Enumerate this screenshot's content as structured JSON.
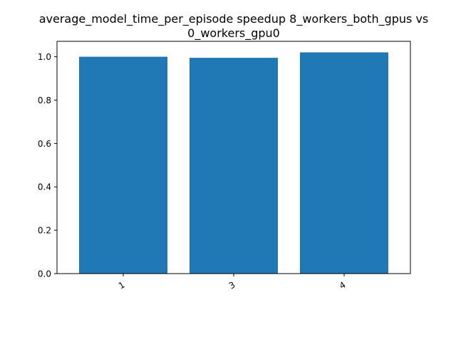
{
  "chart_data": {
    "type": "bar",
    "title_lines": [
      "average_model_time_per_episode speedup 8_workers_both_gpus vs",
      "0_workers_gpu0"
    ],
    "xlabel": "",
    "ylabel": "",
    "categories": [
      "1",
      "3",
      "4"
    ],
    "values": [
      1.0,
      0.995,
      1.02
    ],
    "ylim": [
      0,
      1.071
    ],
    "yticks": [
      0.0,
      0.2,
      0.4,
      0.6,
      0.8,
      1.0
    ],
    "ytick_labels": [
      "0.0",
      "0.2",
      "0.4",
      "0.6",
      "0.8",
      "1.0"
    ],
    "grid": false,
    "bar_color": "#1f77b4"
  }
}
